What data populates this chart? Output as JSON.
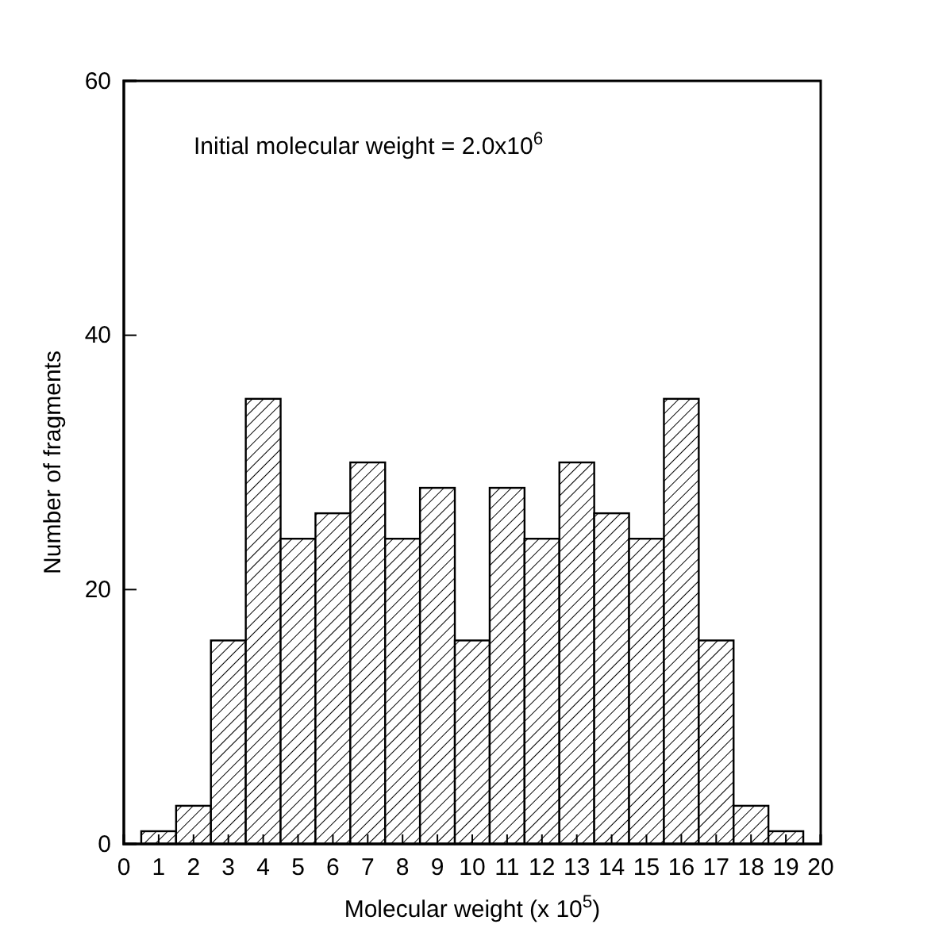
{
  "chart_data": {
    "type": "histogram",
    "xlabel": "Molecular weight (x 10$^{5}$)",
    "ylabel": "Number of fragments",
    "annotations": [
      "Initial molecular weight = 2.0x10$^{6}$"
    ],
    "bins": [
      0.5,
      1.5,
      2.5,
      3.5,
      4.5,
      5.5,
      6.5,
      7.5,
      8.5,
      9.5,
      10.5,
      11.5,
      12.5,
      13.5,
      14.5,
      15.5,
      16.5,
      17.5,
      18.5,
      19.5
    ],
    "values": [
      1,
      3,
      16,
      35,
      24,
      26,
      30,
      24,
      28,
      16,
      28,
      24,
      30,
      26,
      24,
      35,
      16,
      3,
      1
    ],
    "color": "#000000",
    "xlim": [
      0,
      20
    ],
    "xticks": [
      0,
      1,
      2,
      3,
      4,
      5,
      6,
      7,
      8,
      9,
      10,
      11,
      12,
      13,
      14,
      15,
      16,
      17,
      18,
      19,
      20
    ],
    "ylim": [
      0,
      60
    ],
    "yticks": [
      0,
      20,
      40,
      60
    ],
    "grid": false
  }
}
